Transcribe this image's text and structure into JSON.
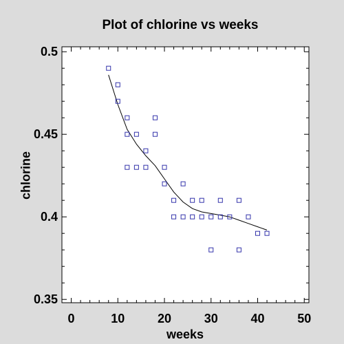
{
  "chart_data": {
    "type": "scatter",
    "title": "Plot of chlorine vs weeks",
    "xlabel": "weeks",
    "ylabel": "chlorine",
    "xlim": [
      -2,
      51
    ],
    "ylim": [
      0.348,
      0.503
    ],
    "x_ticks": [
      0,
      10,
      20,
      30,
      40,
      50
    ],
    "x_tick_labels": [
      "0",
      "10",
      "20",
      "30",
      "40",
      "50"
    ],
    "y_ticks": [
      0.35,
      0.4,
      0.45,
      0.5
    ],
    "y_tick_labels": [
      "0.35",
      "0.4",
      "0.45",
      "0.5"
    ],
    "grid": false,
    "marker_color": "#3333aa",
    "line_color": "#000000",
    "series": [
      {
        "type": "scatter",
        "x": [
          8,
          10,
          10,
          12,
          12,
          12,
          14,
          14,
          16,
          16,
          18,
          18,
          20,
          20,
          22,
          22,
          24,
          24,
          26,
          26,
          28,
          28,
          30,
          30,
          32,
          32,
          34,
          36,
          36,
          38,
          40,
          42
        ],
        "y": [
          0.49,
          0.48,
          0.47,
          0.46,
          0.45,
          0.43,
          0.45,
          0.43,
          0.44,
          0.43,
          0.46,
          0.45,
          0.42,
          0.43,
          0.41,
          0.4,
          0.4,
          0.42,
          0.4,
          0.41,
          0.4,
          0.41,
          0.4,
          0.38,
          0.4,
          0.41,
          0.4,
          0.41,
          0.38,
          0.4,
          0.39,
          0.39
        ]
      },
      {
        "type": "line",
        "x": [
          8,
          10,
          12,
          14,
          16,
          18,
          20,
          22,
          24,
          26,
          28,
          30,
          32,
          34,
          36,
          38,
          40,
          42
        ],
        "y": [
          0.486,
          0.468,
          0.453,
          0.444,
          0.437,
          0.431,
          0.423,
          0.415,
          0.409,
          0.405,
          0.403,
          0.402,
          0.401,
          0.4,
          0.398,
          0.396,
          0.394,
          0.392
        ]
      }
    ]
  }
}
